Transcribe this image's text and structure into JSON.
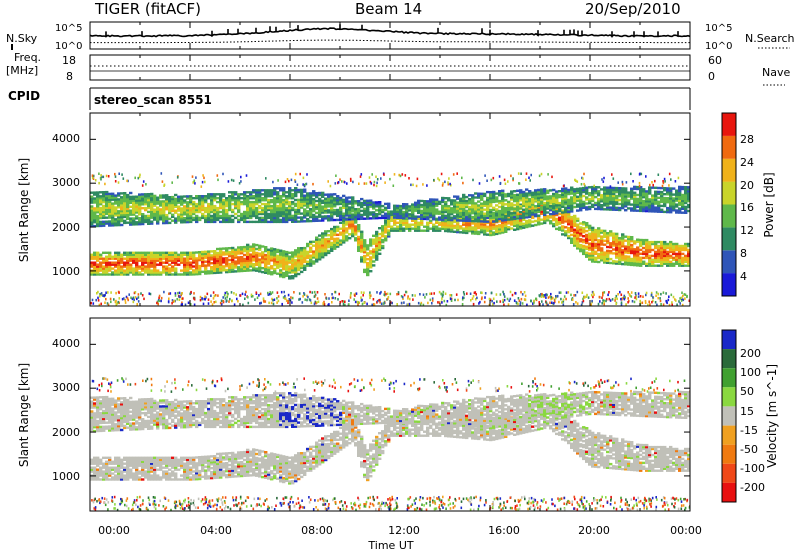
{
  "header": {
    "title": "TIGER (fitACF)",
    "beam": "Beam 14",
    "date": "20/Sep/2010"
  },
  "top_panels": {
    "nsky_label": "N.Sky",
    "nsearch_label": "N.Search",
    "nsky_ticks": [
      "10^5",
      "10^0"
    ],
    "nsearch_ticks": [
      "10^5",
      "10^0"
    ],
    "freq_label": "Freq.",
    "freq_unit": "[MHz]",
    "freq_ticks": [
      "18",
      "8"
    ],
    "nave_label": "Nave",
    "nave_ticks": [
      "60",
      "0"
    ],
    "cpid_label": "CPID",
    "cpid_value": "stereo_scan 8551"
  },
  "axes": {
    "xlabel": "Time UT",
    "xticks": [
      "00:00",
      "04:00",
      "08:00",
      "12:00",
      "16:00",
      "20:00",
      "00:00"
    ],
    "ylabel": "Slant Range [km]",
    "yticks": [
      "1000",
      "2000",
      "3000",
      "4000"
    ]
  },
  "power_scale": {
    "label": "Power [dB]",
    "ticks": [
      "4",
      "8",
      "12",
      "16",
      "20",
      "24",
      "28"
    ],
    "colors": [
      "#1a1ad8",
      "#2f55b8",
      "#2f8a62",
      "#5fb84a",
      "#c9d42a",
      "#f0b21a",
      "#f06a10",
      "#e8160e"
    ]
  },
  "velocity_scale": {
    "label": "Velocity [m s^-1]",
    "ticks": [
      "200",
      "100",
      "50",
      "15",
      "-15",
      "-50",
      "-100",
      "-200"
    ],
    "colors": [
      "#1a28c8",
      "#2a6a3a",
      "#40a030",
      "#8ad840",
      "#c0c0b8",
      "#f0a020",
      "#f07a10",
      "#f04818",
      "#e81010"
    ]
  },
  "chart_data": [
    {
      "type": "heatmap",
      "title": "Power",
      "xlabel": "Time UT",
      "ylabel": "Slant Range [km]",
      "xlim": [
        0,
        24
      ],
      "ylim": [
        200,
        4600
      ],
      "colorbar_label": "Power [dB]",
      "colorbar_range": [
        0,
        32
      ],
      "echo_bands": [
        {
          "t": [
            0,
            4,
            6.5,
            8,
            10.5,
            11,
            12,
            14,
            16,
            18.3,
            20,
            22,
            24
          ],
          "range_lo": [
            900,
            900,
            1000,
            800,
            1800,
            800,
            1900,
            1900,
            1800,
            2100,
            1200,
            1100,
            1100
          ],
          "range_hi": [
            1400,
            1400,
            1600,
            1400,
            2300,
            1600,
            2300,
            2200,
            2300,
            2700,
            2000,
            1700,
            1600
          ],
          "peak_power_db": [
            30,
            30,
            28,
            22,
            26,
            24,
            22,
            22,
            26,
            28,
            28,
            29,
            30
          ]
        },
        {
          "t": [
            0,
            4,
            8,
            12,
            16,
            20,
            24
          ],
          "range_lo": [
            2000,
            2100,
            2100,
            2200,
            2100,
            2400,
            2300
          ],
          "range_hi": [
            2800,
            2700,
            2900,
            2500,
            2800,
            2900,
            2900
          ],
          "peak_power_db": [
            18,
            20,
            16,
            12,
            18,
            16,
            14
          ]
        }
      ]
    },
    {
      "type": "heatmap",
      "title": "Velocity",
      "xlabel": "Time UT",
      "ylabel": "Slant Range [km]",
      "xlim": [
        0,
        24
      ],
      "ylim": [
        200,
        4600
      ],
      "colorbar_label": "Velocity [m s^-1]",
      "colorbar_ticks": [
        200,
        100,
        50,
        15,
        -15,
        -50,
        -100,
        -200
      ],
      "note_velocity_mostly_between": [
        -15,
        15
      ]
    }
  ]
}
